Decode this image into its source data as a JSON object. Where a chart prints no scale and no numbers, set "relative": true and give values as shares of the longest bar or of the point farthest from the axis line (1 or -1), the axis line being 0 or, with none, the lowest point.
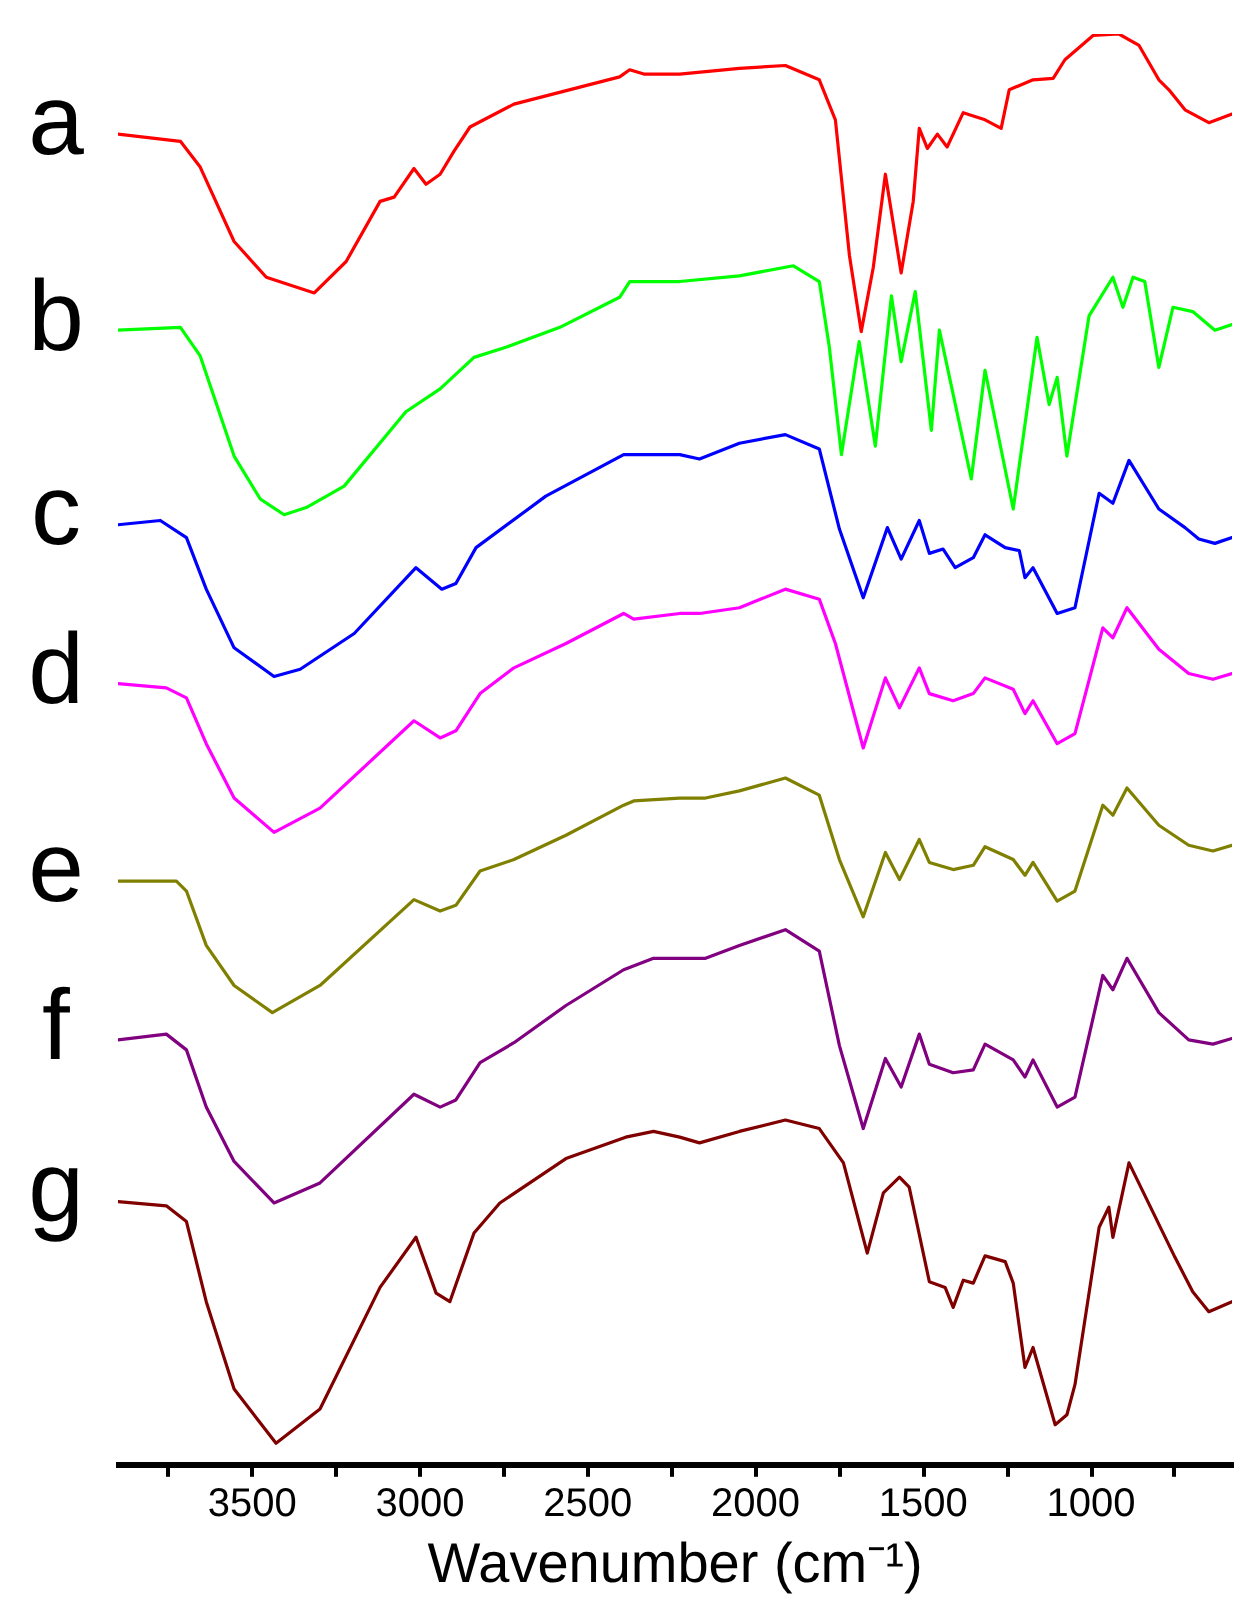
{
  "chart_data": {
    "type": "line",
    "relative": true,
    "xlabel": "Wavenumber (cm⁻¹)",
    "xlim": [
      3900,
      580
    ],
    "xticks": [
      {
        "value": 3750,
        "label": null
      },
      3500,
      {
        "value": 3250,
        "label": null
      },
      3000,
      {
        "value": 2750,
        "label": null
      },
      2500,
      {
        "value": 2250,
        "label": null
      },
      2000,
      {
        "value": 1750,
        "label": null
      },
      1500,
      {
        "value": 1250,
        "label": null
      },
      1000,
      {
        "value": 750,
        "label": null
      }
    ],
    "marker": "none",
    "line_style": "solid",
    "legend": false,
    "series": [
      {
        "name": "a",
        "color": "#ff0000",
        "x": [
          3900,
          3714,
          3655,
          3554,
          3458,
          3315,
          3220,
          3119,
          3077,
          3018,
          2982,
          2940,
          2899,
          2851,
          2720,
          2405,
          2375,
          2333,
          2226,
          2048,
          1911,
          1810,
          1762,
          1720,
          1685,
          1649,
          1613,
          1566,
          1530,
          1512,
          1488,
          1458,
          1429,
          1381,
          1316,
          1268,
          1244,
          1173,
          1113,
          1078,
          994,
          917,
          857,
          798,
          768,
          720,
          649,
          580
        ],
        "values": [
          0.93,
          0.925,
          0.907,
          0.855,
          0.83,
          0.819,
          0.841,
          0.883,
          0.886,
          0.906,
          0.895,
          0.902,
          0.918,
          0.935,
          0.951,
          0.97,
          0.975,
          0.972,
          0.972,
          0.976,
          0.978,
          0.968,
          0.94,
          0.845,
          0.792,
          0.837,
          0.902,
          0.833,
          0.883,
          0.934,
          0.92,
          0.93,
          0.921,
          0.945,
          0.94,
          0.934,
          0.961,
          0.968,
          0.969,
          0.982,
          0.999,
          1.0,
          0.992,
          0.968,
          0.961,
          0.947,
          0.938,
          0.944
        ]
      },
      {
        "name": "b",
        "color": "#00ff00",
        "x": [
          3900,
          3714,
          3655,
          3554,
          3476,
          3405,
          3339,
          3226,
          3042,
          2940,
          2839,
          2744,
          2583,
          2405,
          2375,
          2226,
          2048,
          1887,
          1810,
          1780,
          1744,
          1691,
          1643,
          1595,
          1566,
          1524,
          1476,
          1452,
          1357,
          1316,
          1232,
          1161,
          1125,
          1101,
          1072,
          1006,
          935,
          905,
          875,
          840,
          798,
          756,
          697,
          631,
          580
        ],
        "values": [
          0.793,
          0.795,
          0.775,
          0.705,
          0.675,
          0.664,
          0.669,
          0.684,
          0.736,
          0.752,
          0.774,
          0.781,
          0.795,
          0.816,
          0.827,
          0.827,
          0.831,
          0.838,
          0.827,
          0.781,
          0.706,
          0.785,
          0.712,
          0.817,
          0.771,
          0.82,
          0.723,
          0.793,
          0.689,
          0.765,
          0.668,
          0.788,
          0.741,
          0.76,
          0.705,
          0.803,
          0.83,
          0.809,
          0.83,
          0.827,
          0.767,
          0.809,
          0.806,
          0.793,
          0.797
        ]
      },
      {
        "name": "c",
        "color": "#0000ff",
        "x": [
          3900,
          3774,
          3696,
          3637,
          3554,
          3435,
          3357,
          3196,
          3012,
          2935,
          2893,
          2833,
          2625,
          2393,
          2363,
          2226,
          2167,
          2048,
          1911,
          1810,
          1750,
          1679,
          1607,
          1566,
          1512,
          1482,
          1441,
          1405,
          1351,
          1316,
          1256,
          1214,
          1197,
          1173,
          1101,
          1048,
          976,
          935,
          887,
          798,
          720,
          679,
          631,
          580
        ],
        "values": [
          0.657,
          0.66,
          0.648,
          0.612,
          0.571,
          0.551,
          0.556,
          0.581,
          0.627,
          0.612,
          0.616,
          0.641,
          0.677,
          0.706,
          0.706,
          0.706,
          0.703,
          0.714,
          0.72,
          0.71,
          0.654,
          0.606,
          0.655,
          0.633,
          0.66,
          0.637,
          0.64,
          0.627,
          0.634,
          0.65,
          0.641,
          0.639,
          0.62,
          0.627,
          0.595,
          0.599,
          0.679,
          0.672,
          0.702,
          0.668,
          0.655,
          0.647,
          0.644,
          0.648
        ]
      },
      {
        "name": "d",
        "color": "#ff00ff",
        "x": [
          3900,
          3756,
          3696,
          3637,
          3554,
          3435,
          3298,
          3018,
          2940,
          2893,
          2821,
          2720,
          2565,
          2393,
          2363,
          2226,
          2167,
          2048,
          1911,
          1810,
          1762,
          1679,
          1613,
          1571,
          1512,
          1482,
          1411,
          1351,
          1316,
          1232,
          1197,
          1173,
          1101,
          1048,
          965,
          935,
          893,
          798,
          709,
          637,
          580
        ],
        "values": [
          0.546,
          0.543,
          0.536,
          0.504,
          0.466,
          0.442,
          0.459,
          0.52,
          0.508,
          0.513,
          0.539,
          0.557,
          0.574,
          0.595,
          0.591,
          0.595,
          0.595,
          0.599,
          0.612,
          0.605,
          0.574,
          0.501,
          0.55,
          0.529,
          0.557,
          0.539,
          0.534,
          0.539,
          0.55,
          0.542,
          0.525,
          0.534,
          0.504,
          0.511,
          0.585,
          0.578,
          0.599,
          0.57,
          0.553,
          0.549,
          0.553
        ]
      },
      {
        "name": "e",
        "color": "#808000",
        "x": [
          3900,
          3726,
          3696,
          3637,
          3554,
          3440,
          3298,
          3018,
          2940,
          2893,
          2821,
          2720,
          2565,
          2393,
          2363,
          2226,
          2149,
          2048,
          1911,
          1810,
          1750,
          1679,
          1613,
          1571,
          1512,
          1482,
          1411,
          1351,
          1316,
          1232,
          1197,
          1173,
          1101,
          1048,
          965,
          935,
          893,
          798,
          709,
          637,
          580
        ],
        "values": [
          0.408,
          0.408,
          0.401,
          0.363,
          0.335,
          0.316,
          0.335,
          0.395,
          0.387,
          0.391,
          0.415,
          0.423,
          0.44,
          0.461,
          0.464,
          0.466,
          0.466,
          0.471,
          0.48,
          0.468,
          0.423,
          0.383,
          0.428,
          0.409,
          0.437,
          0.421,
          0.416,
          0.419,
          0.432,
          0.423,
          0.412,
          0.421,
          0.394,
          0.401,
          0.461,
          0.454,
          0.473,
          0.447,
          0.433,
          0.429,
          0.433
        ]
      },
      {
        "name": "f",
        "color": "#800080",
        "x": [
          3900,
          3756,
          3696,
          3637,
          3554,
          3435,
          3298,
          3018,
          2940,
          2893,
          2821,
          2720,
          2565,
          2393,
          2304,
          2226,
          2149,
          2048,
          1911,
          1810,
          1750,
          1679,
          1613,
          1566,
          1512,
          1482,
          1411,
          1351,
          1316,
          1232,
          1197,
          1173,
          1101,
          1048,
          965,
          935,
          893,
          798,
          709,
          637,
          580
        ],
        "values": [
          0.297,
          0.301,
          0.29,
          0.25,
          0.212,
          0.183,
          0.197,
          0.259,
          0.25,
          0.255,
          0.281,
          0.295,
          0.321,
          0.346,
          0.354,
          0.354,
          0.354,
          0.363,
          0.374,
          0.359,
          0.293,
          0.235,
          0.284,
          0.264,
          0.301,
          0.28,
          0.274,
          0.276,
          0.294,
          0.283,
          0.271,
          0.283,
          0.25,
          0.257,
          0.342,
          0.332,
          0.354,
          0.316,
          0.297,
          0.294,
          0.298
        ]
      },
      {
        "name": "g",
        "color": "#800000",
        "x": [
          3900,
          3756,
          3696,
          3637,
          3554,
          3429,
          3298,
          3119,
          3012,
          2952,
          2911,
          2839,
          2762,
          2565,
          2387,
          2304,
          2226,
          2167,
          2048,
          1911,
          1810,
          1738,
          1667,
          1619,
          1571,
          1542,
          1482,
          1435,
          1411,
          1381,
          1351,
          1316,
          1256,
          1232,
          1197,
          1173,
          1107,
          1072,
          1048,
          976,
          947,
          935,
          887,
          750,
          697,
          649,
          580
        ],
        "values": [
          0.184,
          0.181,
          0.17,
          0.114,
          0.053,
          0.015,
          0.039,
          0.124,
          0.159,
          0.12,
          0.114,
          0.162,
          0.183,
          0.214,
          0.229,
          0.233,
          0.229,
          0.225,
          0.233,
          0.241,
          0.235,
          0.211,
          0.148,
          0.19,
          0.201,
          0.194,
          0.128,
          0.124,
          0.11,
          0.129,
          0.127,
          0.146,
          0.142,
          0.127,
          0.068,
          0.082,
          0.028,
          0.035,
          0.056,
          0.166,
          0.18,
          0.159,
          0.211,
          0.145,
          0.121,
          0.107,
          0.114
        ]
      }
    ]
  }
}
